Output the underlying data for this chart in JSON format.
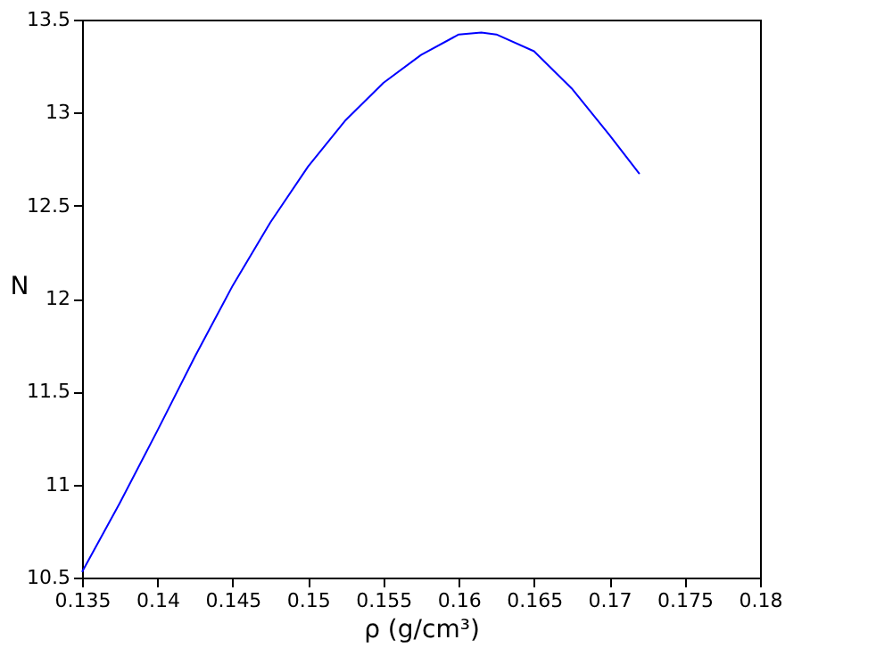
{
  "chart_data": {
    "type": "line",
    "xlabel": "ρ  (g/cm³)",
    "ylabel": "N",
    "x": [
      0.135,
      0.1375,
      0.14,
      0.1425,
      0.145,
      0.1475,
      0.15,
      0.1525,
      0.155,
      0.1575,
      0.16,
      0.1615,
      0.1625,
      0.165,
      0.1675,
      0.17,
      0.172
    ],
    "series": [
      {
        "color": "#0000ff",
        "values": [
          10.53,
          10.9,
          11.29,
          11.69,
          12.07,
          12.41,
          12.71,
          12.96,
          13.16,
          13.31,
          13.42,
          13.43,
          13.42,
          13.33,
          13.13,
          12.88,
          12.67
        ]
      }
    ],
    "xlim": [
      0.135,
      0.18
    ],
    "xticks": [
      0.135,
      0.14,
      0.145,
      0.15,
      0.155,
      0.16,
      0.165,
      0.17,
      0.175,
      0.18
    ],
    "ylim": [
      10.5,
      13.5
    ],
    "yticks": [
      10.5,
      11,
      11.5,
      12,
      12.5,
      13,
      13.5
    ],
    "grid": false,
    "marker": "none",
    "line_style": "solid"
  }
}
